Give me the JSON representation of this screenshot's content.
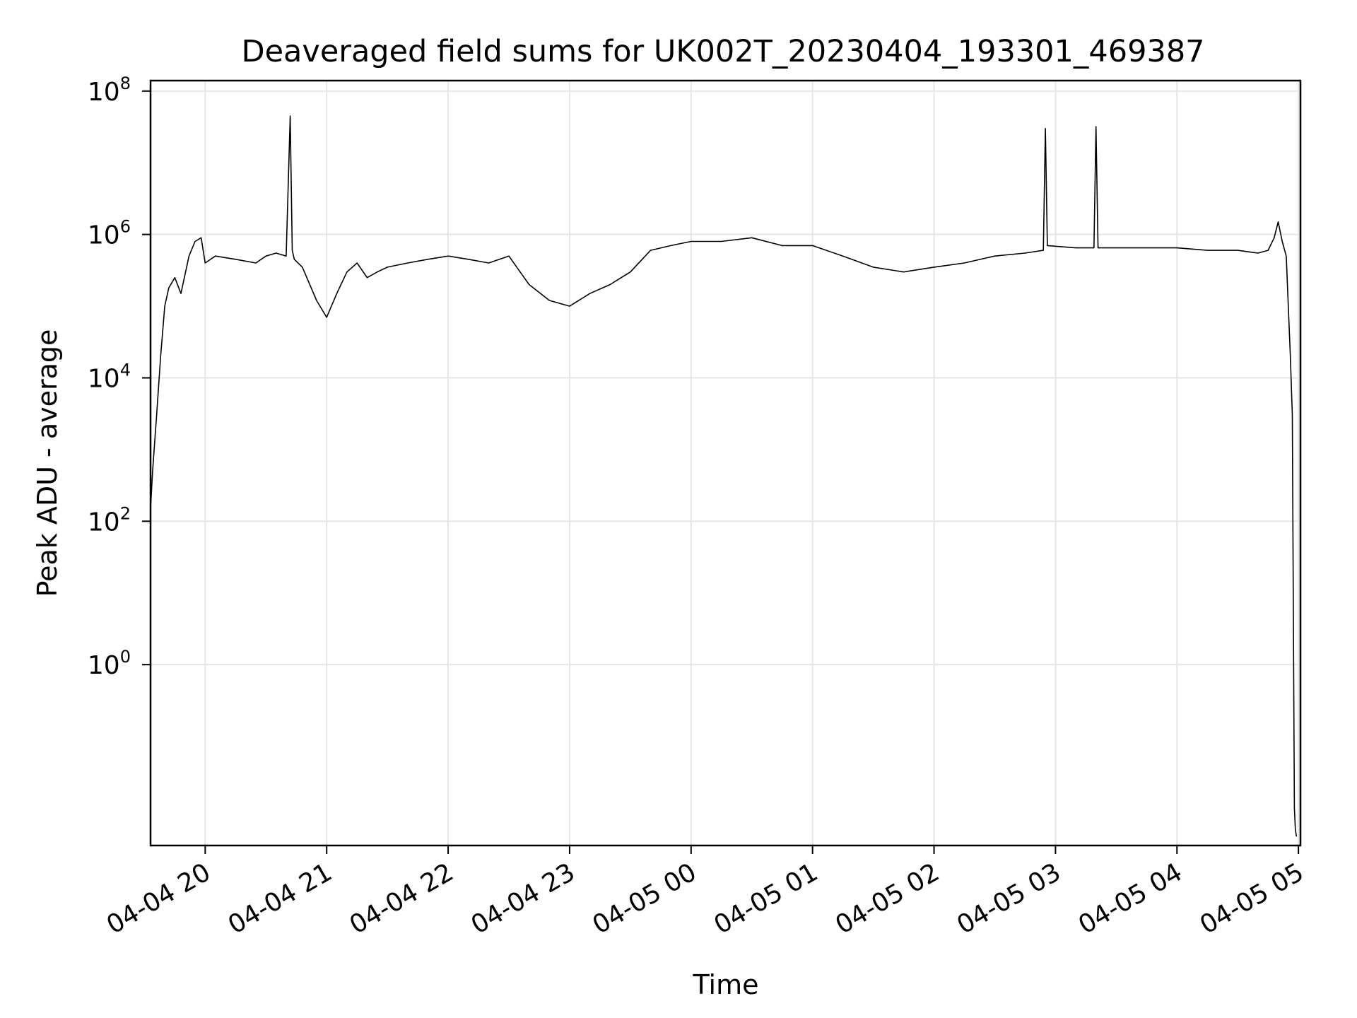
{
  "chart_data": {
    "type": "line",
    "title": "Deaveraged field sums for UK002T_20230404_193301_469387",
    "xlabel": "Time",
    "ylabel": "Peak ADU - average",
    "yscale": "log",
    "grid": true,
    "line_color": "#000000",
    "grid_color": "#e6e6e6",
    "xlim": [
      "2023-04-04 19:33",
      "2023-04-05 05:01"
    ],
    "ylim": [
      0.003,
      140000000
    ],
    "x_ticks": [
      "04-04 20",
      "04-04 21",
      "04-04 22",
      "04-04 23",
      "04-05 00",
      "04-05 01",
      "04-05 02",
      "04-05 03",
      "04-05 04",
      "04-05 05"
    ],
    "y_ticks": [
      {
        "base": "10",
        "exp": "0"
      },
      {
        "base": "10",
        "exp": "2"
      },
      {
        "base": "10",
        "exp": "4"
      },
      {
        "base": "10",
        "exp": "6"
      },
      {
        "base": "10",
        "exp": "8"
      }
    ],
    "series": [
      {
        "x": [
          "2023-04-04 19:33",
          "2023-04-04 19:34",
          "2023-04-04 19:36",
          "2023-04-04 19:38",
          "2023-04-04 19:40",
          "2023-04-04 19:42",
          "2023-04-04 19:45",
          "2023-04-04 19:48",
          "2023-04-04 19:52",
          "2023-04-04 19:55",
          "2023-04-04 19:58",
          "2023-04-04 20:00",
          "2023-04-04 20:05",
          "2023-04-04 20:15",
          "2023-04-04 20:25",
          "2023-04-04 20:30",
          "2023-04-04 20:35",
          "2023-04-04 20:40",
          "2023-04-04 20:42",
          "2023-04-04 20:43",
          "2023-04-04 20:44",
          "2023-04-04 20:48",
          "2023-04-04 20:55",
          "2023-04-04 21:00",
          "2023-04-04 21:05",
          "2023-04-04 21:10",
          "2023-04-04 21:15",
          "2023-04-04 21:20",
          "2023-04-04 21:25",
          "2023-04-04 21:30",
          "2023-04-04 21:40",
          "2023-04-04 21:50",
          "2023-04-04 22:00",
          "2023-04-04 22:10",
          "2023-04-04 22:20",
          "2023-04-04 22:30",
          "2023-04-04 22:40",
          "2023-04-04 22:50",
          "2023-04-04 23:00",
          "2023-04-04 23:10",
          "2023-04-04 23:20",
          "2023-04-04 23:30",
          "2023-04-04 23:40",
          "2023-04-04 23:50",
          "2023-04-05 00:00",
          "2023-04-05 00:15",
          "2023-04-05 00:30",
          "2023-04-05 00:45",
          "2023-04-05 01:00",
          "2023-04-05 01:15",
          "2023-04-05 01:30",
          "2023-04-05 01:45",
          "2023-04-05 02:00",
          "2023-04-05 02:15",
          "2023-04-05 02:30",
          "2023-04-05 02:45",
          "2023-04-05 02:54",
          "2023-04-05 02:55",
          "2023-04-05 02:56",
          "2023-04-05 03:10",
          "2023-04-05 03:19",
          "2023-04-05 03:20",
          "2023-04-05 03:21",
          "2023-04-05 03:30",
          "2023-04-05 03:45",
          "2023-04-05 04:00",
          "2023-04-05 04:15",
          "2023-04-05 04:30",
          "2023-04-05 04:40",
          "2023-04-05 04:45",
          "2023-04-05 04:48",
          "2023-04-05 04:50",
          "2023-04-05 04:52",
          "2023-04-05 04:54",
          "2023-04-05 04:56",
          "2023-04-05 04:57",
          "2023-04-05 04:58",
          "2023-04-05 04:58:30",
          "2023-04-05 04:59"
        ],
        "y": [
          150,
          500,
          3000,
          20000,
          100000,
          180000,
          250000,
          150000,
          500000,
          800000,
          900000,
          400000,
          500000,
          450000,
          400000,
          500000,
          550000,
          500000,
          45000000,
          600000,
          450000,
          350000,
          120000,
          70000,
          150000,
          300000,
          400000,
          250000,
          300000,
          350000,
          400000,
          450000,
          500000,
          450000,
          400000,
          500000,
          200000,
          120000,
          100000,
          150000,
          200000,
          300000,
          600000,
          700000,
          800000,
          800000,
          900000,
          700000,
          700000,
          500000,
          350000,
          300000,
          350000,
          400000,
          500000,
          550000,
          600000,
          30000000,
          700000,
          650000,
          650000,
          32000000,
          650000,
          650000,
          650000,
          650000,
          600000,
          600000,
          550000,
          600000,
          900000,
          1500000,
          800000,
          500000,
          20000,
          3000,
          0.01,
          0.005,
          0.004
        ]
      }
    ]
  }
}
